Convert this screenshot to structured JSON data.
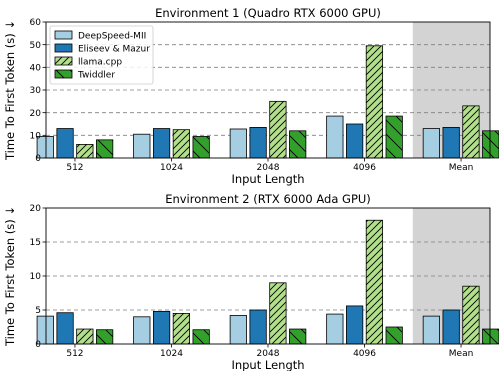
{
  "chart_data": [
    {
      "type": "bar",
      "title": "Environment 1 (Quadro RTX 6000 GPU)",
      "xlabel": "Input Length",
      "ylabel": "Time To First Token (s) ↓",
      "categories": [
        "512",
        "1024",
        "2048",
        "4096",
        "Mean"
      ],
      "ylim": [
        0,
        60
      ],
      "yticks": [
        0,
        10,
        20,
        30,
        40,
        50,
        60
      ],
      "grid": "y-dashed",
      "highlight_category": "Mean",
      "legend_position": "top-left",
      "series": [
        {
          "name": "DeepSpeed-MII",
          "values": [
            9.5,
            10.5,
            12.8,
            18.5,
            13.0
          ]
        },
        {
          "name": "Eliseev & Mazur",
          "values": [
            13.0,
            13.0,
            13.5,
            15.0,
            13.5
          ]
        },
        {
          "name": "llama.cpp",
          "values": [
            6.0,
            12.5,
            25.0,
            49.5,
            23.0
          ]
        },
        {
          "name": "Twiddler",
          "values": [
            8.0,
            9.5,
            12.0,
            18.5,
            12.0
          ]
        }
      ]
    },
    {
      "type": "bar",
      "title": "Environment 2 (RTX 6000 Ada GPU)",
      "xlabel": "Input Length",
      "ylabel": "Time To First Token (s) ↓",
      "categories": [
        "512",
        "1024",
        "2048",
        "4096",
        "Mean"
      ],
      "ylim": [
        0,
        20
      ],
      "yticks": [
        0,
        5,
        10,
        15,
        20
      ],
      "grid": "y-dashed",
      "highlight_category": "Mean",
      "series": [
        {
          "name": "DeepSpeed-MII",
          "values": [
            4.1,
            4.0,
            4.2,
            4.4,
            4.1
          ]
        },
        {
          "name": "Eliseev & Mazur",
          "values": [
            4.6,
            4.8,
            5.0,
            5.6,
            5.0
          ]
        },
        {
          "name": "llama.cpp",
          "values": [
            2.2,
            4.5,
            9.0,
            18.2,
            8.5
          ]
        },
        {
          "name": "Twiddler",
          "values": [
            2.1,
            2.1,
            2.2,
            2.5,
            2.2
          ]
        }
      ]
    }
  ],
  "series_colors": [
    "#a6cee3",
    "#1f78b4",
    "#b2df8a",
    "#33a02c"
  ],
  "series_hatch": [
    "none",
    "none",
    "diagonal",
    "back-diagonal"
  ],
  "highlight_color": "#d3d3d3"
}
